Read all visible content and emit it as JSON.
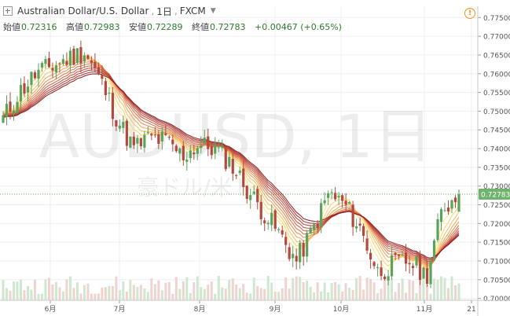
{
  "header": {
    "symbol": "Australian Dollar/U.S. Dollar",
    "interval": "1日",
    "exchange": "FXCM"
  },
  "ohlc": {
    "open_label": "始値",
    "open": "0.72316",
    "high_label": "高値",
    "high": "0.72983",
    "low_label": "安値",
    "low": "0.72289",
    "close_label": "終値",
    "close": "0.72783",
    "change": "+0.00467 (+0.65%)"
  },
  "watermark": {
    "line1": "AUDUSD, 1日",
    "line2": "豪ドル/米ドル"
  },
  "icons": {
    "alert": "alert-icon"
  },
  "colors": {
    "up": "#5ba35b",
    "down": "#b5483c",
    "ribbon_top": "#8b1a1a",
    "ribbon_bottom": "#ffe680"
  },
  "chart_data": {
    "type": "candlestick",
    "title": "Australian Dollar/U.S. Dollar, 1日, FXCM",
    "ylim": [
      0.6995,
      0.778
    ],
    "y_ticks": [
      "0.77500",
      "0.77000",
      "0.76500",
      "0.76000",
      "0.75500",
      "0.75000",
      "0.74500",
      "0.74000",
      "0.73500",
      "0.73000",
      "0.72500",
      "0.72000",
      "0.71500",
      "0.71000",
      "0.70500",
      "0.70000"
    ],
    "x_ticks": [
      "6月",
      "7月",
      "8月",
      "9月",
      "10月",
      "11月",
      "21"
    ],
    "last_price_label": "0.72783",
    "grid": true,
    "price_series": [
      {
        "x": "5/10",
        "y": 0.748
      },
      {
        "x": "5/17",
        "y": 0.755
      },
      {
        "x": "5/24",
        "y": 0.76
      },
      {
        "x": "5/31",
        "y": 0.762
      },
      {
        "x": "6/7",
        "y": 0.764
      },
      {
        "x": "6/14",
        "y": 0.766
      },
      {
        "x": "6/21",
        "y": 0.758
      },
      {
        "x": "6/28",
        "y": 0.748
      },
      {
        "x": "7/5",
        "y": 0.74
      },
      {
        "x": "7/12",
        "y": 0.743
      },
      {
        "x": "7/19",
        "y": 0.742
      },
      {
        "x": "7/26",
        "y": 0.738
      },
      {
        "x": "8/2",
        "y": 0.741
      },
      {
        "x": "8/9",
        "y": 0.74
      },
      {
        "x": "8/16",
        "y": 0.736
      },
      {
        "x": "8/23",
        "y": 0.729
      },
      {
        "x": "8/30",
        "y": 0.723
      },
      {
        "x": "9/6",
        "y": 0.717
      },
      {
        "x": "9/13",
        "y": 0.71
      },
      {
        "x": "9/20",
        "y": 0.718
      },
      {
        "x": "9/27",
        "y": 0.728
      },
      {
        "x": "10/4",
        "y": 0.725
      },
      {
        "x": "10/11",
        "y": 0.718
      },
      {
        "x": "10/18",
        "y": 0.707
      },
      {
        "x": "10/25",
        "y": 0.709
      },
      {
        "x": "11/1",
        "y": 0.71
      },
      {
        "x": "11/8",
        "y": 0.706
      },
      {
        "x": "11/15",
        "y": 0.724
      },
      {
        "x": "11/19",
        "y": 0.7278
      }
    ]
  }
}
